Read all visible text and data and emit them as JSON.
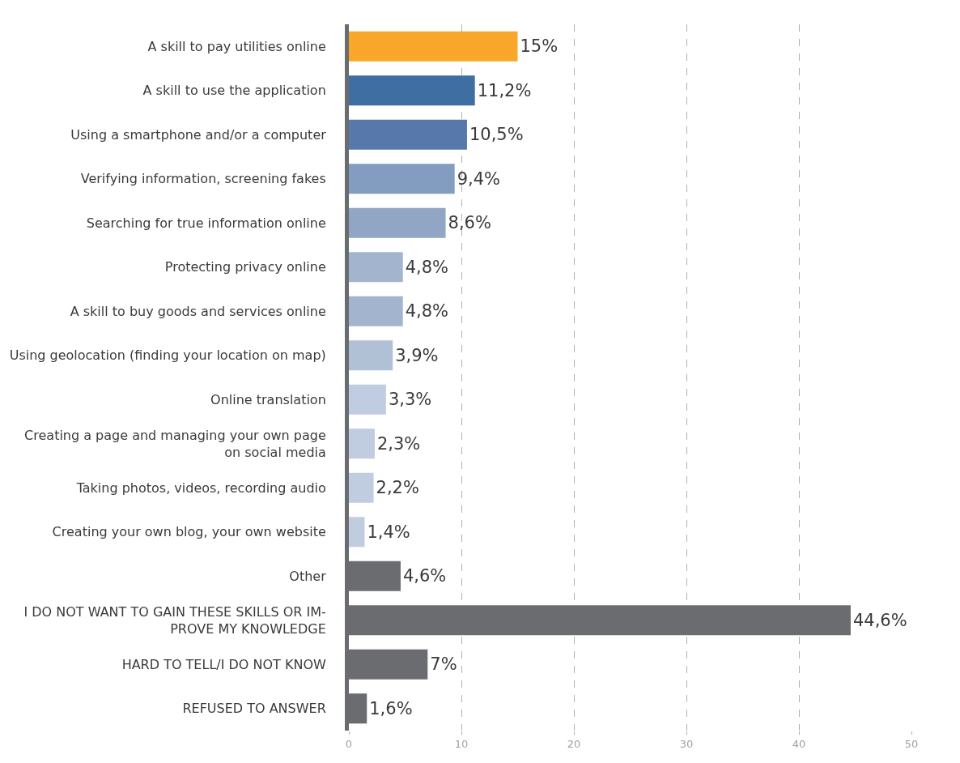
{
  "chart_data": {
    "type": "bar",
    "orientation": "horizontal",
    "categories": [
      "A skill to pay utilities online",
      "A skill to use the application",
      "Using a smartphone and/or a computer",
      "Verifying information, screening fakes",
      "Searching for true information online",
      "Protecting privacy online",
      "A skill to buy goods and services online",
      "Using geolocation (finding your location on map)",
      "Online translation",
      "Creating a page and managing your own page\non social media",
      "Taking photos, videos, recording audio",
      "Creating your own blog, your own website",
      "Other",
      "I DO NOT WANT TO GAIN THESE SKILLS OR IM-\nPROVE MY KNOWLEDGE",
      "HARD TO TELL/I DO NOT KNOW",
      "REFUSED TO ANSWER"
    ],
    "values": [
      15,
      11.2,
      10.5,
      9.4,
      8.6,
      4.8,
      4.8,
      3.9,
      3.3,
      2.3,
      2.2,
      1.4,
      4.6,
      44.6,
      7,
      1.6
    ],
    "value_labels": [
      "15%",
      "11,2%",
      "10,5%",
      "9,4%",
      "8,6%",
      "4,8%",
      "4,8%",
      "3,9%",
      "3,3%",
      "2,3%",
      "2,2%",
      "1,4%",
      "4,6%",
      "44,6%",
      "7%",
      "1,6%"
    ],
    "colors": [
      "#f9a72b",
      "#3f6ea3",
      "#5678aa",
      "#829dc0",
      "#91a6c5",
      "#a3b4cf",
      "#a3b4cf",
      "#b0c1d6",
      "#c0cde0",
      "#c0cde0",
      "#c0cde0",
      "#c0cde0",
      "#6b6c70",
      "#6b6c70",
      "#6b6c70",
      "#6b6c70"
    ],
    "xlim": [
      0,
      50
    ],
    "xticks": [
      0,
      10,
      20,
      30,
      40,
      50
    ],
    "grid": "x"
  }
}
